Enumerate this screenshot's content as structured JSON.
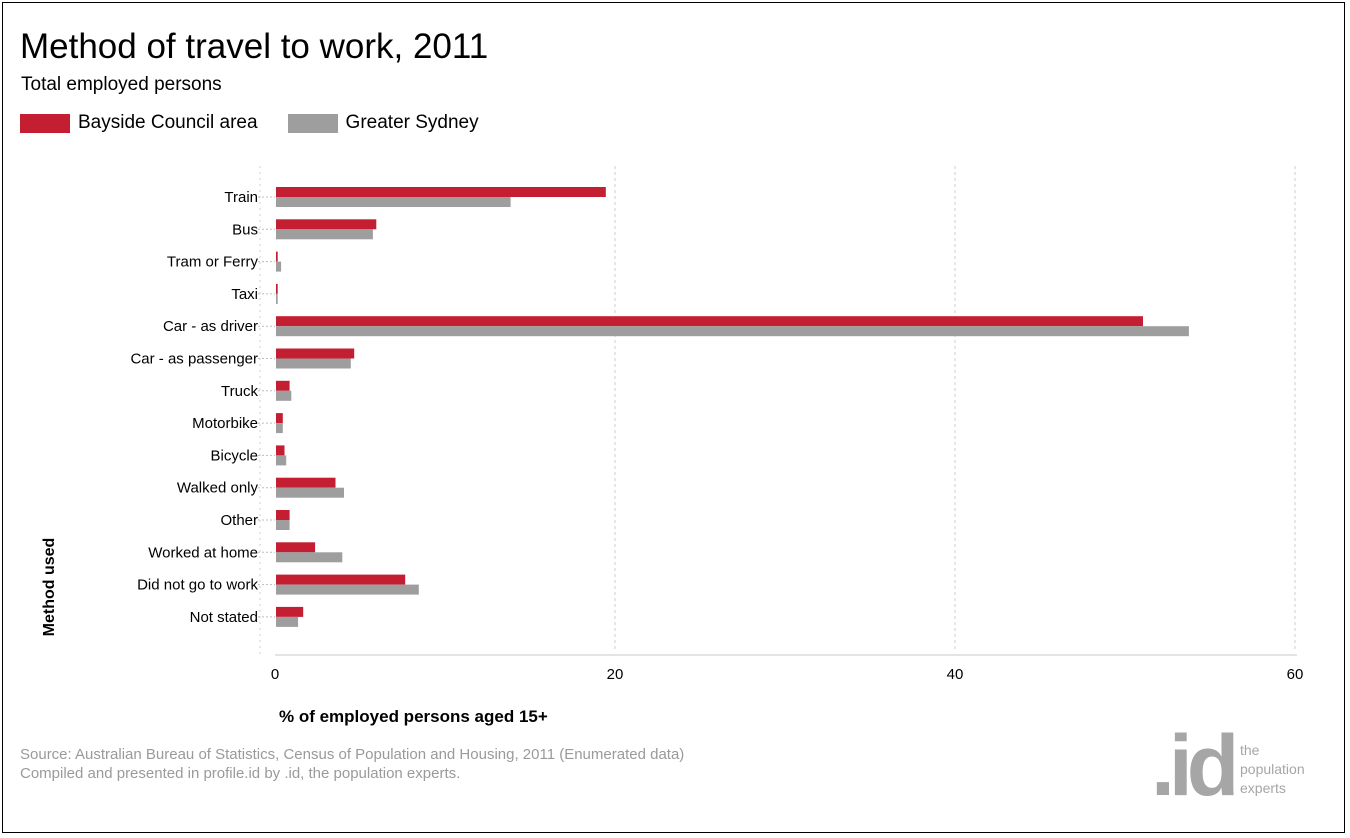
{
  "header": {
    "title": "Method of travel to work, 2011",
    "subtitle": "Total employed persons"
  },
  "legend": {
    "placement": "top-left",
    "items": [
      {
        "label": "Bayside Council area",
        "color": "#c41e32"
      },
      {
        "label": "Greater Sydney",
        "color": "#9e9e9e"
      }
    ]
  },
  "footer": {
    "source_line1": "Source: Australian Bureau of Statistics, Census of Population and Housing, 2011 (Enumerated data)",
    "source_line2": "Compiled and presented in profile.id by .id, the population experts.",
    "logo_mark": ".id",
    "logo_text": [
      "the",
      "population",
      "experts"
    ]
  },
  "chart_data": {
    "type": "bar",
    "orientation": "horizontal",
    "title": "Method of travel to work, 2011",
    "subtitle": "Total employed persons",
    "xlabel": "% of employed persons aged 15+",
    "ylabel": "Method used",
    "xlim": [
      0,
      60
    ],
    "xticks": [
      0,
      20,
      40,
      60
    ],
    "grid": true,
    "legend_position": "top-left",
    "categories": [
      "Train",
      "Bus",
      "Tram or Ferry",
      "Taxi",
      "Car - as driver",
      "Car - as passenger",
      "Truck",
      "Motorbike",
      "Bicycle",
      "Walked only",
      "Other",
      "Worked at home",
      "Did not go to work",
      "Not stated"
    ],
    "series": [
      {
        "name": "Bayside Council area",
        "color": "#c41e32",
        "values": [
          19.4,
          5.9,
          0.1,
          0.1,
          51.0,
          4.6,
          0.8,
          0.4,
          0.5,
          3.5,
          0.8,
          2.3,
          7.6,
          1.6
        ]
      },
      {
        "name": "Greater Sydney",
        "color": "#9e9e9e",
        "values": [
          13.8,
          5.7,
          0.3,
          0.1,
          53.7,
          4.4,
          0.9,
          0.4,
          0.6,
          4.0,
          0.8,
          3.9,
          8.4,
          1.3
        ]
      }
    ]
  }
}
